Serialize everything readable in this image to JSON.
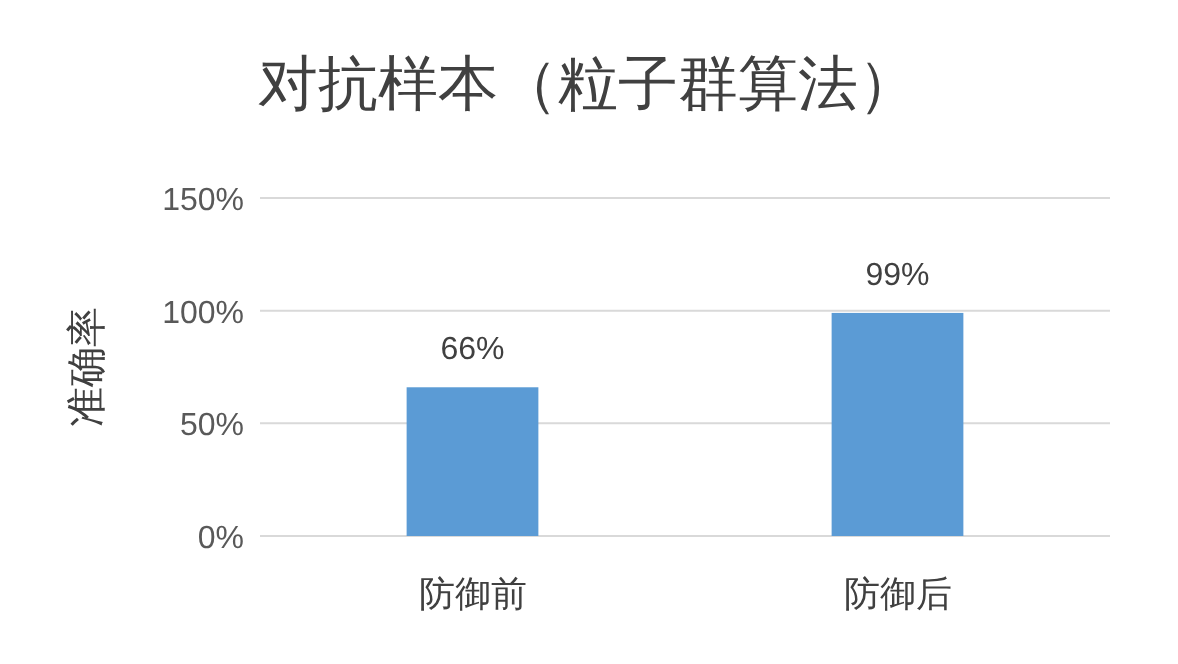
{
  "chart_data": {
    "type": "bar",
    "title": "对抗样本（粒子群算法）",
    "ylabel": "准确率",
    "categories": [
      "防御前",
      "防御后"
    ],
    "values": [
      66,
      99
    ],
    "value_labels": [
      "66%",
      "99%"
    ],
    "color": "#5b9bd5",
    "ylim": [
      0,
      150
    ],
    "yticks": [
      {
        "value": 0,
        "label": "0%"
      },
      {
        "value": 50,
        "label": "50%"
      },
      {
        "value": 100,
        "label": "100%"
      },
      {
        "value": 150,
        "label": "150%"
      }
    ],
    "grid": "y"
  }
}
